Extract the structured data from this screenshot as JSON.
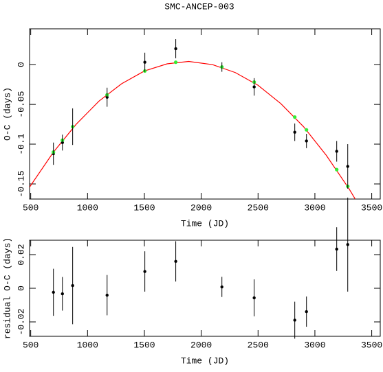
{
  "chart_data": [
    {
      "type": "scatter",
      "title": "SMC-ANCEP-003",
      "x_label": "Time (JD)",
      "y_label": "O-C (days)",
      "x": [
        700,
        779,
        869,
        1172,
        1504,
        1776,
        2182,
        2466,
        2823,
        2926,
        3192,
        3289
      ],
      "series": [
        {
          "color": "#000000",
          "values": [
            -0.112,
            -0.098,
            -0.078,
            -0.041,
            0.003,
            0.02,
            -0.003,
            -0.028,
            -0.085,
            -0.096,
            -0.109,
            -0.128
          ],
          "errors": [
            0.014,
            0.01,
            0.023,
            0.012,
            0.012,
            0.012,
            0.006,
            0.011,
            0.011,
            0.009,
            0.013,
            0.028
          ]
        },
        {
          "color": "#33ee33",
          "values": [
            -0.11,
            -0.095,
            -0.078,
            -0.038,
            -0.008,
            0.003,
            -0.003,
            -0.022,
            -0.066,
            -0.082,
            -0.132,
            -0.153
          ]
        }
      ],
      "curve": {
        "color": "#ff0000",
        "x": [
          490,
          700,
          900,
          1100,
          1300,
          1500,
          1700,
          1890,
          2100,
          2300,
          2500,
          2700,
          2900,
          3100,
          3300,
          3380
        ],
        "values": [
          -0.154,
          -0.11,
          -0.075,
          -0.046,
          -0.024,
          -0.008,
          0.001,
          0.004,
          0.0,
          -0.01,
          -0.026,
          -0.049,
          -0.078,
          -0.114,
          -0.156,
          -0.175
        ]
      },
      "xlim": [
        490,
        3575
      ],
      "ylim": [
        -0.169,
        0.045
      ],
      "xticks": [
        500,
        1000,
        1500,
        2000,
        2500,
        3000,
        3500
      ],
      "yticks": [
        -0.15,
        -0.1,
        -0.05,
        0
      ]
    },
    {
      "type": "scatter",
      "x_label": "Time (JD)",
      "y_label": "residual O-C (days)",
      "x": [
        700,
        779,
        869,
        1172,
        1504,
        1776,
        2182,
        2466,
        2823,
        2926,
        3192,
        3289
      ],
      "series": [
        {
          "color": "#000000",
          "values": [
            -0.0024,
            -0.0033,
            0.0016,
            -0.0041,
            0.01,
            0.016,
            0.0008,
            -0.0057,
            -0.019,
            -0.0139,
            0.0233,
            0.026
          ],
          "errors": [
            0.014,
            0.01,
            0.023,
            0.012,
            0.012,
            0.012,
            0.006,
            0.011,
            0.011,
            0.009,
            0.013,
            0.028
          ]
        }
      ],
      "xlim": [
        490,
        3575
      ],
      "ylim": [
        -0.0286,
        0.0286
      ],
      "xticks": [
        500,
        1000,
        1500,
        2000,
        2500,
        3000,
        3500
      ],
      "yticks": [
        -0.02,
        0,
        0.02
      ]
    }
  ]
}
